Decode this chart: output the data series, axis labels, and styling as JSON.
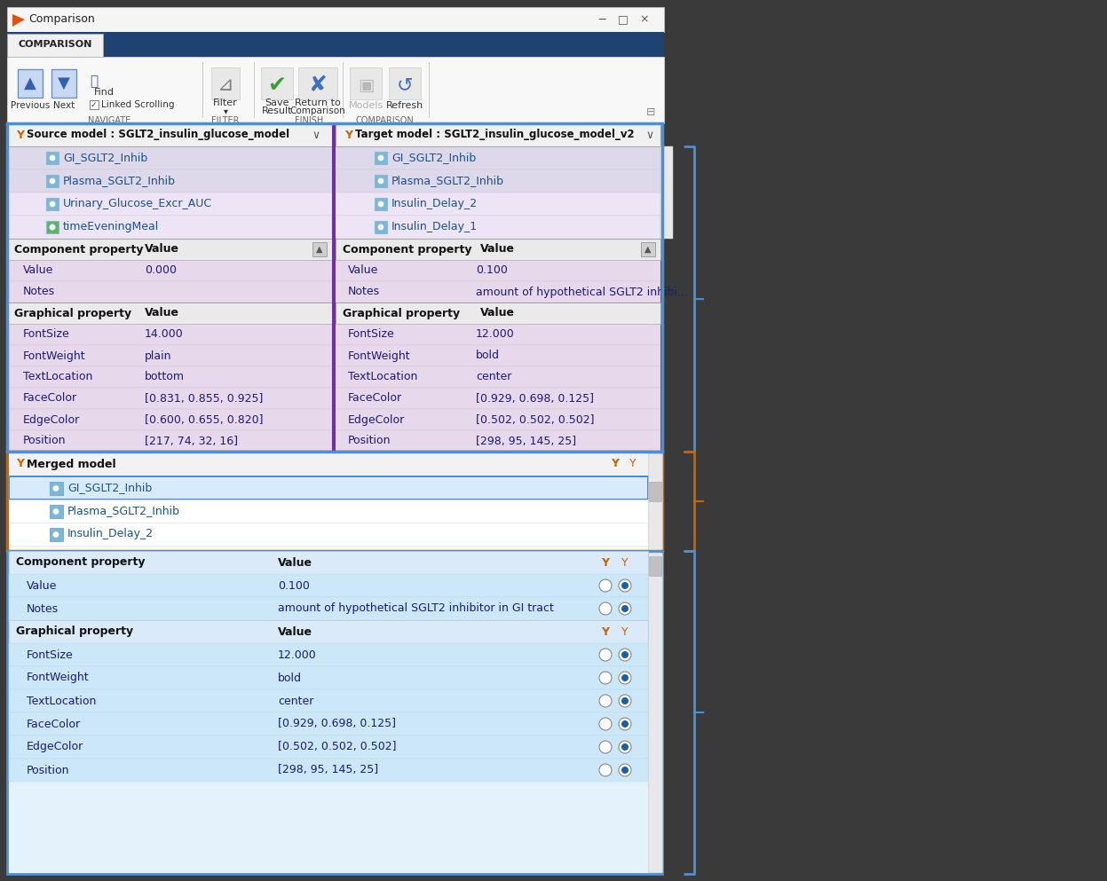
{
  "window_title": "Comparison",
  "tab_label": "COMPARISON",
  "source_label": "Source model : SGLT2_insulin_glucose_model",
  "target_label": "Target model : SGLT2_insulin_glucose_model_v2",
  "merged_label": "Merged model",
  "source_items": [
    "GI_SGLT2_Inhib",
    "Plasma_SGLT2_Inhib",
    "Urinary_Glucose_Excr_AUC",
    "timeEveningMeal"
  ],
  "target_items": [
    "GI_SGLT2_Inhib",
    "Plasma_SGLT2_Inhib",
    "Insulin_Delay_2",
    "Insulin_Delay_1"
  ],
  "merged_items": [
    "GI_SGLT2_Inhib",
    "Plasma_SGLT2_Inhib",
    "Insulin_Delay_2"
  ],
  "source_item_colors": [
    "#ddd8ea",
    "#ddd8ea",
    "#ede5f5",
    "#ede5f5"
  ],
  "target_item_colors": [
    "#ddd8ea",
    "#ddd8ea",
    "#ede5f5",
    "#ede5f5"
  ],
  "source_item_icon_colors": [
    "#7ab8d8",
    "#7ab8d8",
    "#7ab8d8",
    "#5ab85a"
  ],
  "target_item_icon_colors": [
    "#7ab8d8",
    "#7ab8d8",
    "#7ab8d8",
    "#7ab8d8"
  ],
  "diff_row_bg": "#e8d8ec",
  "diff_hdr_bg": "#eaeaea",
  "diff_comp_headers": [
    "Component property",
    "Value"
  ],
  "diff_graph_headers": [
    "Graphical property",
    "Value"
  ],
  "source_comp_rows": [
    [
      "Value",
      "0.000"
    ],
    [
      "Notes",
      ""
    ]
  ],
  "source_graph_rows": [
    [
      "FontSize",
      "14.000"
    ],
    [
      "FontWeight",
      "plain"
    ],
    [
      "TextLocation",
      "bottom"
    ],
    [
      "FaceColor",
      "[0.831, 0.855, 0.925]"
    ],
    [
      "EdgeColor",
      "[0.600, 0.655, 0.820]"
    ],
    [
      "Position",
      "[217, 74, 32, 16]"
    ]
  ],
  "target_comp_rows": [
    [
      "Value",
      "0.100"
    ],
    [
      "Notes",
      "amount of hypothetical SGLT2 inhibi..."
    ]
  ],
  "target_graph_rows": [
    [
      "FontSize",
      "12.000"
    ],
    [
      "FontWeight",
      "bold"
    ],
    [
      "TextLocation",
      "center"
    ],
    [
      "FaceColor",
      "[0.929, 0.698, 0.125]"
    ],
    [
      "EdgeColor",
      "[0.502, 0.502, 0.502]"
    ],
    [
      "Position",
      "[298, 95, 145, 25]"
    ]
  ],
  "merge_comp_headers": [
    "Component property",
    "Value"
  ],
  "merge_graph_headers": [
    "Graphical property",
    "Value"
  ],
  "merge_comp_rows": [
    [
      "Value",
      "0.100"
    ],
    [
      "Notes",
      "amount of hypothetical SGLT2 inhibitor in GI tract"
    ]
  ],
  "merge_graph_rows": [
    [
      "FontSize",
      "12.000"
    ],
    [
      "FontWeight",
      "bold"
    ],
    [
      "TextLocation",
      "center"
    ],
    [
      "FaceColor",
      "[0.929, 0.698, 0.125]"
    ],
    [
      "EdgeColor",
      "[0.502, 0.502, 0.502]"
    ],
    [
      "Position",
      "[298, 95, 145, 25]"
    ]
  ],
  "outer_bg": "#3a3a3a",
  "win_bg": "#f0f0f0",
  "titlebar_bg": "#f5f5f5",
  "navbar_bg": "#1e4272",
  "tab_bg": "#f0f0f0",
  "ribbon_bg": "#f8f8f8",
  "border_blue": "#4a90d9",
  "border_orange": "#c86400",
  "border_purple": "#7030a0",
  "merged_bg": "#f8f8f8",
  "merge_table_bg": "#e8f4fc",
  "merge_row_bg": "#cce8f8",
  "merge_hdr_bg": "#ddeeff",
  "scrollbar_bg": "#e8e8e8",
  "scrollbar_thumb": "#c0c0c0"
}
